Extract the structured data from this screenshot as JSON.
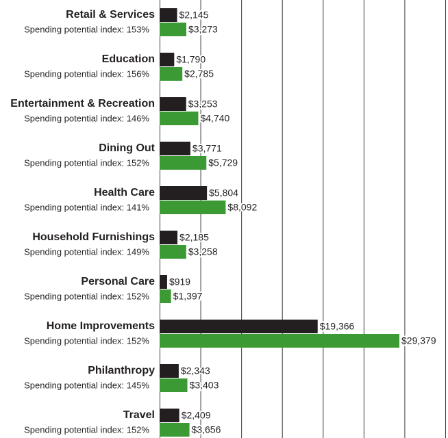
{
  "chart_data": {
    "type": "bar",
    "orientation": "horizontal",
    "categories": [
      "Retail & Services",
      "Education",
      "Entertainment & Recreation",
      "Dining Out",
      "Health Care",
      "Household Furnishings",
      "Personal Care",
      "Home Improvements",
      "Philanthropy",
      "Travel"
    ],
    "index_labels": [
      "Spending potential index: 153%",
      "Spending potential index: 156%",
      "Spending potential index: 146%",
      "Spending potential index: 152%",
      "Spending potential index: 141%",
      "Spending potential index: 149%",
      "Spending potential index: 152%",
      "Spending potential index: 152%",
      "Spending potential index: 145%",
      "Spending potential index: 152%"
    ],
    "series": [
      {
        "color": "#231f20",
        "values": [
          2145,
          1790,
          3253,
          3771,
          5804,
          2185,
          919,
          19366,
          2343,
          2409
        ],
        "value_labels": [
          "$2,145",
          "$1,790",
          "$3,253",
          "$3,771",
          "$5,804",
          "$2,185",
          "$919",
          "$19,366",
          "$2,343",
          "$2,409"
        ]
      },
      {
        "color": "#3c9a35",
        "values": [
          3273,
          2785,
          4740,
          5729,
          8092,
          3258,
          1397,
          29379,
          3403,
          3656
        ],
        "value_labels": [
          "$3,273",
          "$2,785",
          "$4,740",
          "$5,729",
          "$8,092",
          "$3,258",
          "$1,397",
          "$29,379",
          "$3,403",
          "$3,656"
        ]
      }
    ],
    "xlim": [
      0,
      35000
    ],
    "xticks": [
      0,
      5000,
      10000,
      15000,
      20000,
      25000,
      30000,
      35000
    ],
    "grid": true
  }
}
